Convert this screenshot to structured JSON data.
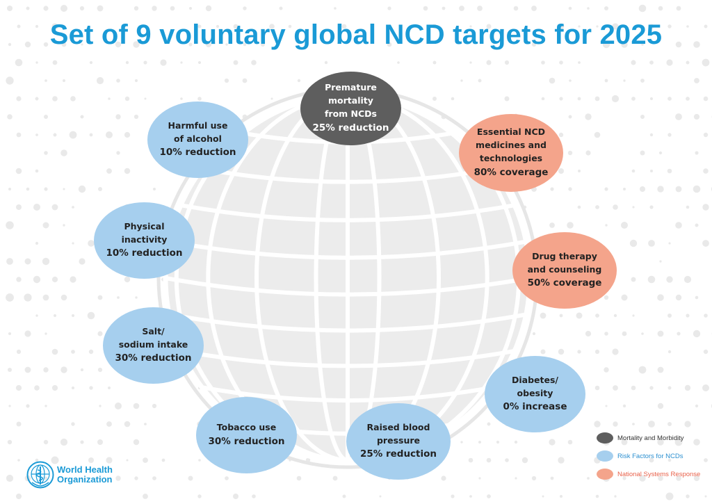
{
  "title": "Set of 9 voluntary global NCD targets for 2025",
  "colors": {
    "title_blue": "#1a9ad6",
    "mortality": "#5e5e5e",
    "risk_factors": "#a6cfee",
    "national_systems": "#f4a48b"
  },
  "targets": [
    {
      "category": "mortality",
      "label": "Premature\nmortality\nfrom NCDs",
      "goal": "25% reduction"
    },
    {
      "category": "risk_factors",
      "label": "Harmful use\nof alcohol",
      "goal": "10% reduction"
    },
    {
      "category": "national_systems",
      "label": "Essential NCD\nmedicines and\ntechnologies",
      "goal": "80% coverage"
    },
    {
      "category": "risk_factors",
      "label": "Physical\ninactivity",
      "goal": "10% reduction"
    },
    {
      "category": "national_systems",
      "label": "Drug therapy\nand counseling",
      "goal": "50% coverage"
    },
    {
      "category": "risk_factors",
      "label": "Salt/\nsodium intake",
      "goal": "30% reduction"
    },
    {
      "category": "risk_factors",
      "label": "Diabetes/\nobesity",
      "goal": "0% increase"
    },
    {
      "category": "risk_factors",
      "label": "Tobacco use",
      "goal": "30% reduction"
    },
    {
      "category": "risk_factors",
      "label": "Raised blood\npressure",
      "goal": "25% reduction"
    }
  ],
  "legend": [
    {
      "category": "mortality",
      "text": "Mortality and Morbidity",
      "text_color": "#333333"
    },
    {
      "category": "risk_factors",
      "text": "Risk Factors for NCDs",
      "text_color": "#2b8fd0"
    },
    {
      "category": "national_systems",
      "text": "National Systems Response",
      "text_color": "#e8614a"
    }
  ],
  "logo": {
    "line1": "World Health",
    "line2": "Organization",
    "icon": "who-emblem-icon"
  }
}
